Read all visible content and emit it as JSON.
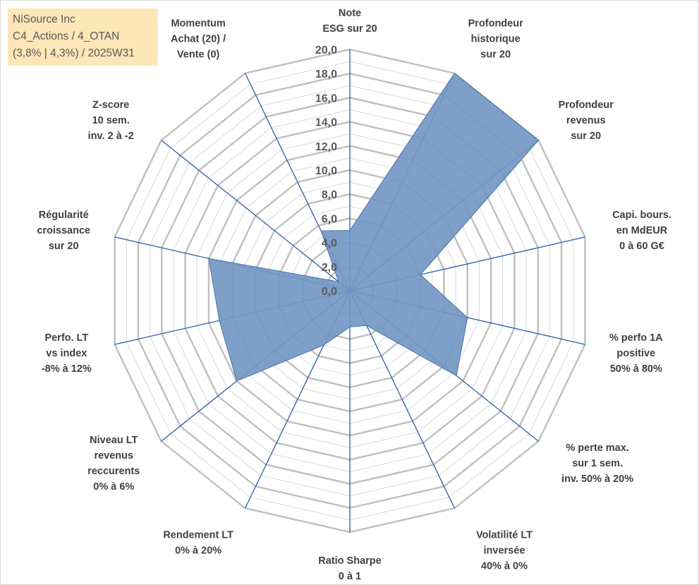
{
  "title_box": {
    "line1": "NiSource Inc",
    "line2": "C4_Actions / 4_OTAN",
    "line3": "(3,8% | 4,3%) / 2025W31"
  },
  "colors": {
    "fill": "#7397c3",
    "stroke": "#4a73a8",
    "spoke": "#2e5ca8",
    "grid_major": "#bfbfbf",
    "grid_minor": "#d9d9d9",
    "title_bg": "#fde6b8"
  },
  "chart_data": {
    "type": "radar",
    "rmin": 0,
    "rmax": 20,
    "tick_values": [
      "0,0",
      "2,0",
      "4,0",
      "6,0",
      "8,0",
      "10,0",
      "12,0",
      "14,0",
      "16,0",
      "18,0",
      "20,0"
    ],
    "grid": true,
    "legend": "none",
    "axes": [
      {
        "label": [
          "Note",
          "ESG sur 20"
        ],
        "value": 5.0
      },
      {
        "label": [
          "Profondeur",
          "historique",
          "sur 20"
        ],
        "value": 20.0
      },
      {
        "label": [
          "Profondeur",
          "revenus",
          "sur 20"
        ],
        "value": 20.0
      },
      {
        "label": [
          "Capi. bours.",
          "en MdEUR",
          "0 à 60 G€"
        ],
        "value": 6.0
      },
      {
        "label": [
          "% perfo 1A",
          "positive",
          "50% à 80%"
        ],
        "value": 10.0
      },
      {
        "label": [
          "% perte max.",
          "sur 1 sem.",
          "inv. 50% à 20%"
        ],
        "value": 11.3
      },
      {
        "label": [
          "Volatilité LT",
          "inversée",
          "40% à 0%"
        ],
        "value": 3.2
      },
      {
        "label": [
          "Ratio Sharpe",
          "0 à 1"
        ],
        "value": 3.0
      },
      {
        "label": [
          "Rendement LT",
          "0% à 20%"
        ],
        "value": 5.0
      },
      {
        "label": [
          "Niveau LT",
          "revenus",
          "reccurents",
          "0% à 6%"
        ],
        "value": 12.0
      },
      {
        "label": [
          "Perfo. LT",
          "vs index",
          "-8% à 12%"
        ],
        "value": 11.1
      },
      {
        "label": [
          "Régularité",
          "croissance",
          "sur 20"
        ],
        "value": 12.0
      },
      {
        "label": [
          "Z-score",
          "10 sem.",
          "inv. 2 à -2"
        ],
        "value": 1.2
      },
      {
        "label": [
          "Momentum",
          "Achat (20) /",
          "Vente (0)"
        ],
        "value": 5.5
      }
    ],
    "series": [
      {
        "values": [
          5.0,
          20.0,
          20.0,
          6.0,
          10.0,
          11.3,
          3.2,
          3.0,
          5.0,
          12.0,
          11.1,
          12.0,
          1.2,
          5.5
        ]
      }
    ]
  }
}
